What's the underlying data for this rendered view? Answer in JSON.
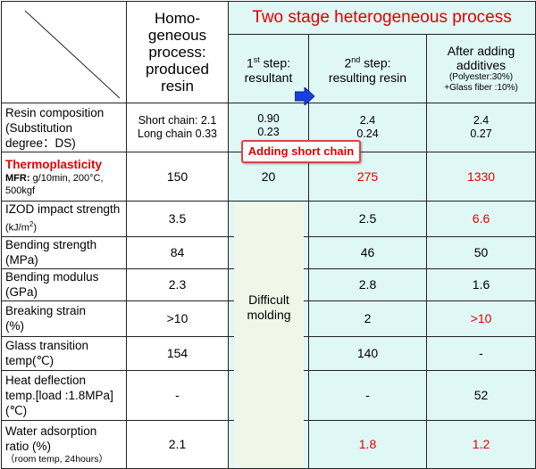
{
  "header": {
    "homogeneous": "Homo-\ngeneous\nprocess:\nproduced\nresin",
    "two_stage_title": "Two stage heterogeneous process",
    "step1_line1": "1",
    "step1_sup": "st",
    "step1_line1_rest": " step:",
    "step1_line2": "resultant",
    "step2_line1": "2",
    "step2_sup": "nd",
    "step2_line1_rest": " step:",
    "step2_line2": "resulting resin",
    "after_line1": "After adding",
    "after_line2": "additives",
    "after_line3": "(Polyester:30%)",
    "after_line4": "+Glass fiber :10%)"
  },
  "callout": "Adding short chain",
  "difficult": "Difficult\nmolding",
  "rows": [
    {
      "label": "Resin composition",
      "sub": "(Substitution degree：DS)",
      "homo": "Short chain: 2.1\nLong chain  0.33",
      "s1": "0.90\n0.23",
      "s2": "2.4\n0.24",
      "add": "2.4\n0.27"
    },
    {
      "label": "Thermoplasticity",
      "sub": "MFR:",
      "sub2": "g/10min, 200°C, 500kgf",
      "homo": "150",
      "s1": "20",
      "s2": "275",
      "add": "1330"
    },
    {
      "label": "IZOD impact strength",
      "sub": "(kJ/m",
      "sup": "2",
      "sub_end": ")",
      "homo": "3.5",
      "s1": "",
      "s2": "2.5",
      "add": "6.6"
    },
    {
      "label": "Bending strength",
      "sub": "(MPa)",
      "homo": "84",
      "s1": "",
      "s2": "46",
      "add": "50"
    },
    {
      "label": "Bending modulus",
      "sub": "(GPa)",
      "homo": "2.3",
      "s1": "",
      "s2": "2.8",
      "add": "1.6"
    },
    {
      "label": "Breaking strain",
      "sub": "(%)",
      "homo": ">10",
      "s1": "",
      "s2": "2",
      "add": ">10"
    },
    {
      "label": "Glass transition",
      "sub": "temp(℃)",
      "homo": "154",
      "s1": "",
      "s2": "140",
      "add": "-"
    },
    {
      "label": "Heat deflection",
      "sub": "temp.[load :1.8MPa]",
      "sub2": "(℃)",
      "homo": "-",
      "s1": "",
      "s2": "-",
      "add": "52"
    },
    {
      "label": "Water adsorption",
      "sub": "ratio  (%)",
      "sub2": "（room temp, 24hours）",
      "homo": "2.1",
      "s1": "",
      "s2": "1.8",
      "add": "1.2"
    }
  ],
  "colors": {
    "cyan": "#dff7f5",
    "red": "#e00000",
    "arrow": "#1a3fe0"
  }
}
